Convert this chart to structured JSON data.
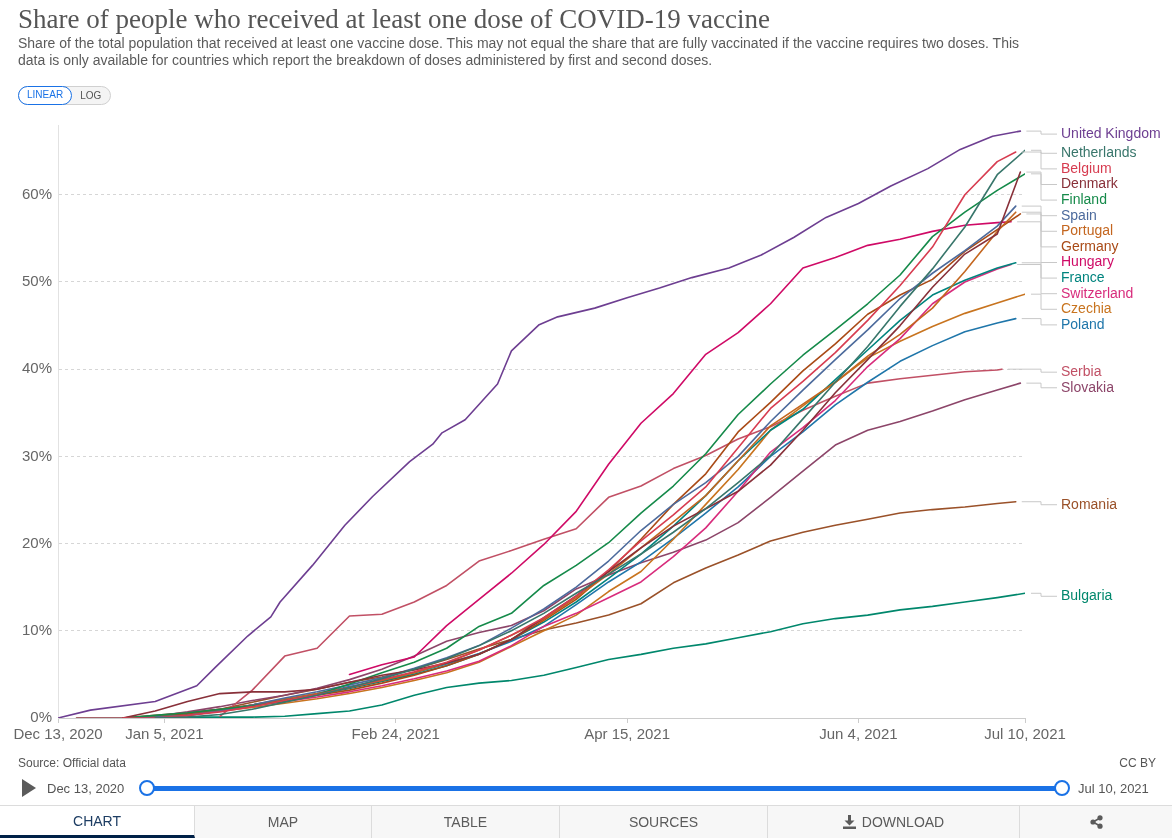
{
  "chart_data": {
    "type": "line",
    "title": "Share of people who received at least one dose of COVID-19 vaccine",
    "subtitle": "Share of the total population that received at least one vaccine dose. This may not equal the share that are fully vaccinated if the vaccine requires two doses. This data is only available for countries which report the breakdown of doses administered by first and second doses.",
    "annotations": [
      "Source: Official data",
      "CC BY",
      "LINEAR",
      "LOG",
      "Dec 13, 2020",
      "Jul 10, 2021",
      "CHART",
      "MAP",
      "TABLE",
      "SOURCES",
      "DOWNLOAD"
    ],
    "xlim": [
      "2020-12-13",
      "2021-07-10"
    ],
    "xticks": [
      {
        "value": "2020-12-13",
        "label": "Dec 13, 2020"
      },
      {
        "value": "2021-01-05",
        "label": "Jan 5, 2021"
      },
      {
        "value": "2021-02-24",
        "label": "Feb 24, 2021"
      },
      {
        "value": "2021-04-15",
        "label": "Apr 15, 2021"
      },
      {
        "value": "2021-06-04",
        "label": "Jun 4, 2021"
      },
      {
        "value": "2021-07-10",
        "label": "Jul 10, 2021"
      }
    ],
    "ylim": [
      0,
      68
    ],
    "yticks": [
      {
        "value": 0,
        "label": "0%"
      },
      {
        "value": 10,
        "label": "10%"
      },
      {
        "value": 20,
        "label": "20%"
      },
      {
        "value": 30,
        "label": "30%"
      },
      {
        "value": 40,
        "label": "40%"
      },
      {
        "value": 50,
        "label": "50%"
      },
      {
        "value": 60,
        "label": "60%"
      }
    ],
    "grid": "y",
    "series": [
      {
        "name": "United Kingdom",
        "color": "#6d3e91",
        "x": [
          "2020-12-13",
          "2020-12-20",
          "2021-01-03",
          "2021-01-10",
          "2021-01-12",
          "2021-01-16",
          "2021-01-23",
          "2021-01-28",
          "2021-01-30",
          "2021-02-06",
          "2021-02-13",
          "2021-02-19",
          "2021-02-27",
          "2021-03-04",
          "2021-03-06",
          "2021-03-11",
          "2021-03-18",
          "2021-03-21",
          "2021-03-27",
          "2021-03-31",
          "2021-04-08",
          "2021-04-15",
          "2021-04-22",
          "2021-04-29",
          "2021-05-07",
          "2021-05-14",
          "2021-05-21",
          "2021-05-28",
          "2021-06-04",
          "2021-06-11",
          "2021-06-19",
          "2021-06-26",
          "2021-07-03",
          "2021-07-09"
        ],
        "values": [
          0.0,
          0.9,
          1.9,
          3.3,
          3.7,
          5.8,
          9.4,
          11.6,
          13.3,
          17.5,
          22.1,
          25.4,
          29.4,
          31.4,
          32.7,
          34.2,
          38.3,
          42.1,
          45.1,
          46.0,
          47.0,
          48.2,
          49.3,
          50.5,
          51.6,
          53.1,
          55.1,
          57.4,
          59.0,
          61.0,
          63.0,
          65.2,
          66.7,
          67.3
        ]
      },
      {
        "name": "Netherlands",
        "color": "#38766b",
        "x": [
          "2021-01-03",
          "2021-01-10",
          "2021-01-17",
          "2021-01-24",
          "2021-01-31",
          "2021-02-07",
          "2021-02-14",
          "2021-02-21",
          "2021-02-28",
          "2021-03-07",
          "2021-03-14",
          "2021-03-21",
          "2021-03-28",
          "2021-04-04",
          "2021-04-11",
          "2021-04-18",
          "2021-04-25",
          "2021-05-02",
          "2021-05-09",
          "2021-05-16",
          "2021-05-23",
          "2021-05-30",
          "2021-06-06",
          "2021-06-13",
          "2021-06-20",
          "2021-06-27",
          "2021-07-04",
          "2021-07-10"
        ],
        "values": [
          0.0,
          0.1,
          0.4,
          1.0,
          1.8,
          2.6,
          3.5,
          4.5,
          5.6,
          6.8,
          8.3,
          10.0,
          12.0,
          14.3,
          16.5,
          18.8,
          21.3,
          24.0,
          27.0,
          30.1,
          34.3,
          38.5,
          42.6,
          47.2,
          51.5,
          56.3,
          62.3,
          65.1
        ]
      },
      {
        "name": "Belgium",
        "color": "#d73c50",
        "x": [
          "2020-12-27",
          "2021-01-03",
          "2021-01-10",
          "2021-01-17",
          "2021-01-24",
          "2021-01-31",
          "2021-02-07",
          "2021-02-14",
          "2021-02-21",
          "2021-02-28",
          "2021-03-07",
          "2021-03-14",
          "2021-03-21",
          "2021-03-28",
          "2021-04-04",
          "2021-04-11",
          "2021-04-18",
          "2021-04-25",
          "2021-05-02",
          "2021-05-09",
          "2021-05-16",
          "2021-05-23",
          "2021-05-30",
          "2021-06-06",
          "2021-06-13",
          "2021-06-20",
          "2021-06-27",
          "2021-07-04",
          "2021-07-08"
        ],
        "values": [
          0.0,
          0.0,
          0.3,
          0.7,
          1.3,
          2.0,
          2.7,
          3.5,
          4.4,
          5.3,
          6.4,
          7.8,
          9.5,
          11.5,
          14.0,
          17.0,
          20.3,
          23.3,
          26.5,
          31.0,
          35.5,
          38.6,
          41.9,
          45.6,
          49.6,
          54.0,
          60.0,
          63.8,
          64.9
        ]
      },
      {
        "name": "Denmark",
        "color": "#883039",
        "x": [
          "2020-12-17",
          "2020-12-27",
          "2021-01-03",
          "2021-01-10",
          "2021-01-17",
          "2021-01-24",
          "2021-01-31",
          "2021-02-07",
          "2021-02-14",
          "2021-02-21",
          "2021-02-28",
          "2021-03-07",
          "2021-03-14",
          "2021-03-21",
          "2021-03-28",
          "2021-04-04",
          "2021-04-11",
          "2021-04-18",
          "2021-04-25",
          "2021-05-02",
          "2021-05-09",
          "2021-05-16",
          "2021-05-23",
          "2021-05-30",
          "2021-06-06",
          "2021-06-13",
          "2021-06-20",
          "2021-06-27",
          "2021-07-04",
          "2021-07-09"
        ],
        "values": [
          0.0,
          0.0,
          0.8,
          1.9,
          2.8,
          3.0,
          3.0,
          3.3,
          4.1,
          4.9,
          5.5,
          6.3,
          7.3,
          9.0,
          11.5,
          14.0,
          16.8,
          19.5,
          22.0,
          24.0,
          26.0,
          29.0,
          33.0,
          37.3,
          41.1,
          45.0,
          49.4,
          53.2,
          55.5,
          62.6
        ]
      },
      {
        "name": "Finland",
        "color": "#158a4a",
        "x": [
          "2020-12-27",
          "2021-01-03",
          "2021-01-10",
          "2021-01-17",
          "2021-01-24",
          "2021-01-31",
          "2021-02-07",
          "2021-02-14",
          "2021-02-21",
          "2021-02-28",
          "2021-03-07",
          "2021-03-14",
          "2021-03-21",
          "2021-03-28",
          "2021-04-04",
          "2021-04-11",
          "2021-04-18",
          "2021-04-25",
          "2021-05-02",
          "2021-05-09",
          "2021-05-16",
          "2021-05-23",
          "2021-05-30",
          "2021-06-06",
          "2021-06-13",
          "2021-06-20",
          "2021-06-27",
          "2021-07-04",
          "2021-07-10"
        ],
        "values": [
          0.0,
          0.3,
          0.6,
          1.0,
          1.4,
          1.9,
          2.7,
          3.9,
          5.2,
          6.4,
          8.0,
          10.5,
          12.0,
          15.2,
          17.5,
          20.1,
          23.5,
          26.6,
          30.3,
          34.8,
          38.3,
          41.6,
          44.5,
          47.5,
          50.8,
          55.2,
          58.0,
          60.5,
          62.4
        ]
      },
      {
        "name": "Spain",
        "color": "#4c6a9c",
        "x": [
          "2020-12-27",
          "2021-01-03",
          "2021-01-10",
          "2021-01-17",
          "2021-01-24",
          "2021-01-31",
          "2021-02-07",
          "2021-02-14",
          "2021-02-21",
          "2021-02-28",
          "2021-03-07",
          "2021-03-14",
          "2021-03-21",
          "2021-03-28",
          "2021-04-04",
          "2021-04-11",
          "2021-04-18",
          "2021-04-25",
          "2021-05-02",
          "2021-05-09",
          "2021-05-16",
          "2021-05-23",
          "2021-05-30",
          "2021-06-06",
          "2021-06-13",
          "2021-06-20",
          "2021-06-27",
          "2021-07-04",
          "2021-07-08"
        ],
        "values": [
          0.0,
          0.1,
          0.3,
          0.8,
          1.5,
          2.3,
          3.0,
          3.8,
          4.6,
          5.7,
          6.9,
          8.3,
          10.3,
          12.5,
          15.0,
          18.0,
          21.5,
          24.5,
          27.0,
          30.0,
          34.0,
          37.6,
          41.1,
          44.5,
          48.1,
          51.0,
          53.6,
          56.4,
          58.7
        ]
      },
      {
        "name": "Portugal",
        "color": "#c4661f",
        "x": [
          "2020-12-27",
          "2021-01-03",
          "2021-01-10",
          "2021-01-17",
          "2021-01-24",
          "2021-01-31",
          "2021-02-07",
          "2021-02-14",
          "2021-02-21",
          "2021-02-28",
          "2021-03-07",
          "2021-03-14",
          "2021-03-21",
          "2021-03-28",
          "2021-04-04",
          "2021-04-11",
          "2021-04-18",
          "2021-04-25",
          "2021-05-02",
          "2021-05-09",
          "2021-05-16",
          "2021-05-23",
          "2021-05-30",
          "2021-06-06",
          "2021-06-13",
          "2021-06-20",
          "2021-06-27",
          "2021-07-04",
          "2021-07-08"
        ],
        "values": [
          0.0,
          0.1,
          0.3,
          0.8,
          1.5,
          2.2,
          2.8,
          3.5,
          4.3,
          5.2,
          6.3,
          7.8,
          9.5,
          11.3,
          13.8,
          16.5,
          19.5,
          22.5,
          25.5,
          29.5,
          33.5,
          36.0,
          38.5,
          41.5,
          44.0,
          47.0,
          51.2,
          55.8,
          58.0
        ]
      },
      {
        "name": "Germany",
        "color": "#a94a16",
        "x": [
          "2020-12-27",
          "2021-01-03",
          "2021-01-10",
          "2021-01-17",
          "2021-01-24",
          "2021-01-31",
          "2021-02-07",
          "2021-02-14",
          "2021-02-21",
          "2021-02-28",
          "2021-03-07",
          "2021-03-14",
          "2021-03-21",
          "2021-03-28",
          "2021-04-04",
          "2021-04-11",
          "2021-04-18",
          "2021-04-25",
          "2021-05-02",
          "2021-05-09",
          "2021-05-16",
          "2021-05-23",
          "2021-05-30",
          "2021-06-06",
          "2021-06-13",
          "2021-06-20",
          "2021-06-27",
          "2021-07-04",
          "2021-07-09"
        ],
        "values": [
          0.0,
          0.2,
          0.5,
          1.0,
          1.5,
          2.0,
          2.6,
          3.2,
          4.0,
          4.9,
          6.0,
          7.3,
          9.0,
          11.2,
          13.6,
          16.8,
          20.5,
          24.5,
          28.0,
          32.8,
          36.2,
          39.8,
          42.9,
          46.3,
          48.5,
          50.3,
          53.5,
          56.0,
          57.8
        ]
      },
      {
        "name": "Hungary",
        "color": "#cf0a66",
        "x": [
          "2021-02-14",
          "2021-02-21",
          "2021-02-28",
          "2021-03-07",
          "2021-03-14",
          "2021-03-21",
          "2021-03-28",
          "2021-04-04",
          "2021-04-11",
          "2021-04-18",
          "2021-04-25",
          "2021-05-02",
          "2021-05-09",
          "2021-05-16",
          "2021-05-23",
          "2021-05-30",
          "2021-06-06",
          "2021-06-13",
          "2021-06-20",
          "2021-06-27",
          "2021-07-04",
          "2021-07-07"
        ],
        "values": [
          5.0,
          6.1,
          7.0,
          10.6,
          13.6,
          16.6,
          19.9,
          23.7,
          29.1,
          33.8,
          37.2,
          41.7,
          44.2,
          47.5,
          51.6,
          52.8,
          54.2,
          54.9,
          55.8,
          56.5,
          56.8,
          56.9
        ]
      },
      {
        "name": "France",
        "color": "#00847e",
        "x": [
          "2020-12-27",
          "2021-01-03",
          "2021-01-10",
          "2021-01-17",
          "2021-01-24",
          "2021-01-31",
          "2021-02-07",
          "2021-02-14",
          "2021-02-21",
          "2021-02-28",
          "2021-03-07",
          "2021-03-14",
          "2021-03-21",
          "2021-03-28",
          "2021-04-04",
          "2021-04-11",
          "2021-04-18",
          "2021-04-25",
          "2021-05-02",
          "2021-05-09",
          "2021-05-16",
          "2021-05-23",
          "2021-05-30",
          "2021-06-06",
          "2021-06-13",
          "2021-06-20",
          "2021-06-27",
          "2021-07-04",
          "2021-07-08"
        ],
        "values": [
          0.0,
          0.1,
          0.4,
          0.9,
          1.5,
          2.1,
          2.7,
          3.4,
          4.2,
          5.0,
          6.0,
          7.3,
          9.0,
          11.0,
          13.3,
          16.0,
          18.8,
          22.0,
          25.5,
          29.5,
          33.0,
          35.4,
          38.8,
          42.2,
          45.6,
          48.5,
          50.2,
          51.6,
          52.2
        ]
      },
      {
        "name": "Switzerland",
        "color": "#d82c7c",
        "x": [
          "2020-12-27",
          "2021-01-03",
          "2021-01-10",
          "2021-01-17",
          "2021-01-24",
          "2021-01-31",
          "2021-02-07",
          "2021-02-14",
          "2021-02-21",
          "2021-02-28",
          "2021-03-07",
          "2021-03-14",
          "2021-03-21",
          "2021-03-28",
          "2021-04-04",
          "2021-04-11",
          "2021-04-18",
          "2021-04-25",
          "2021-05-02",
          "2021-05-09",
          "2021-05-16",
          "2021-05-23",
          "2021-05-30",
          "2021-06-06",
          "2021-06-13",
          "2021-06-20",
          "2021-06-27",
          "2021-07-04",
          "2021-07-07"
        ],
        "values": [
          0.0,
          0.2,
          0.6,
          1.0,
          1.4,
          1.9,
          2.4,
          3.0,
          3.7,
          4.5,
          5.4,
          6.5,
          8.3,
          10.5,
          12.0,
          13.8,
          15.6,
          18.5,
          21.8,
          26.0,
          30.5,
          33.3,
          36.4,
          40.3,
          43.5,
          47.5,
          50.0,
          51.5,
          52.0
        ]
      },
      {
        "name": "Czechia",
        "color": "#c8741f",
        "x": [
          "2020-12-27",
          "2021-01-03",
          "2021-01-10",
          "2021-01-17",
          "2021-01-24",
          "2021-01-31",
          "2021-02-07",
          "2021-02-14",
          "2021-02-21",
          "2021-02-28",
          "2021-03-07",
          "2021-03-14",
          "2021-03-21",
          "2021-03-28",
          "2021-04-04",
          "2021-04-11",
          "2021-04-18",
          "2021-04-25",
          "2021-05-02",
          "2021-05-09",
          "2021-05-16",
          "2021-05-23",
          "2021-05-30",
          "2021-06-06",
          "2021-06-13",
          "2021-06-20",
          "2021-06-27",
          "2021-07-04",
          "2021-07-10"
        ],
        "values": [
          0.0,
          0.2,
          0.5,
          0.8,
          1.2,
          1.7,
          2.2,
          2.8,
          3.5,
          4.3,
          5.2,
          6.4,
          8.2,
          10.0,
          11.8,
          14.5,
          16.8,
          20.5,
          24.5,
          28.5,
          33.0,
          35.8,
          38.5,
          41.3,
          43.2,
          44.9,
          46.4,
          47.6,
          48.6
        ]
      },
      {
        "name": "Poland",
        "color": "#1f76aa",
        "x": [
          "2021-01-17",
          "2021-01-24",
          "2021-01-31",
          "2021-02-07",
          "2021-02-14",
          "2021-02-21",
          "2021-02-28",
          "2021-03-07",
          "2021-03-14",
          "2021-03-21",
          "2021-03-28",
          "2021-04-04",
          "2021-04-11",
          "2021-04-18",
          "2021-04-25",
          "2021-05-02",
          "2021-05-09",
          "2021-05-16",
          "2021-05-23",
          "2021-05-30",
          "2021-06-06",
          "2021-06-13",
          "2021-06-20",
          "2021-06-27",
          "2021-07-04",
          "2021-07-08"
        ],
        "values": [
          0.8,
          1.4,
          2.1,
          2.8,
          3.6,
          4.3,
          5.2,
          6.2,
          7.4,
          8.8,
          10.5,
          13.0,
          15.6,
          17.9,
          20.6,
          23.5,
          26.5,
          30.0,
          32.8,
          35.9,
          38.5,
          40.9,
          42.7,
          44.3,
          45.3,
          45.8
        ]
      },
      {
        "name": "Serbia",
        "color": "#c15065",
        "x": [
          "2021-01-17",
          "2021-01-24",
          "2021-01-31",
          "2021-02-07",
          "2021-02-14",
          "2021-02-21",
          "2021-02-28",
          "2021-03-07",
          "2021-03-14",
          "2021-03-21",
          "2021-03-28",
          "2021-04-04",
          "2021-04-11",
          "2021-04-18",
          "2021-04-25",
          "2021-05-02",
          "2021-05-09",
          "2021-05-16",
          "2021-05-23",
          "2021-05-30",
          "2021-06-06",
          "2021-06-13",
          "2021-06-20",
          "2021-06-27",
          "2021-07-04",
          "2021-07-05"
        ],
        "values": [
          0.2,
          3.2,
          7.1,
          8.0,
          11.7,
          11.9,
          13.3,
          15.2,
          18.0,
          19.2,
          20.5,
          21.7,
          25.3,
          26.6,
          28.6,
          30.1,
          32.0,
          33.4,
          35.3,
          36.9,
          38.4,
          38.9,
          39.3,
          39.7,
          39.9,
          40.0
        ]
      },
      {
        "name": "Slovakia",
        "color": "#8c4569",
        "x": [
          "2020-12-27",
          "2021-01-03",
          "2021-01-10",
          "2021-01-17",
          "2021-01-24",
          "2021-01-31",
          "2021-02-07",
          "2021-02-14",
          "2021-02-21",
          "2021-02-28",
          "2021-03-07",
          "2021-03-14",
          "2021-03-21",
          "2021-03-28",
          "2021-04-04",
          "2021-04-11",
          "2021-04-18",
          "2021-04-25",
          "2021-05-02",
          "2021-05-09",
          "2021-05-16",
          "2021-05-23",
          "2021-05-30",
          "2021-06-06",
          "2021-06-13",
          "2021-06-20",
          "2021-06-27",
          "2021-07-04",
          "2021-07-09"
        ],
        "values": [
          0.0,
          0.2,
          0.7,
          1.3,
          2.0,
          2.6,
          3.4,
          4.4,
          5.6,
          7.1,
          8.8,
          9.8,
          10.6,
          12.3,
          14.8,
          16.4,
          17.8,
          19.0,
          20.4,
          22.4,
          25.3,
          28.3,
          31.3,
          33.0,
          34.0,
          35.2,
          36.5,
          37.6,
          38.4
        ]
      },
      {
        "name": "Romania",
        "color": "#9a5129",
        "x": [
          "2020-12-27",
          "2021-01-03",
          "2021-01-10",
          "2021-01-17",
          "2021-01-24",
          "2021-01-31",
          "2021-02-07",
          "2021-02-14",
          "2021-02-21",
          "2021-02-28",
          "2021-03-07",
          "2021-03-14",
          "2021-03-21",
          "2021-03-28",
          "2021-04-04",
          "2021-04-11",
          "2021-04-18",
          "2021-04-25",
          "2021-05-02",
          "2021-05-09",
          "2021-05-16",
          "2021-05-23",
          "2021-05-30",
          "2021-06-06",
          "2021-06-13",
          "2021-06-20",
          "2021-06-27",
          "2021-07-04",
          "2021-07-08"
        ],
        "values": [
          0.0,
          0.3,
          0.6,
          1.0,
          1.8,
          2.6,
          3.3,
          4.1,
          4.7,
          5.6,
          6.7,
          7.9,
          9.0,
          10.1,
          10.9,
          11.8,
          13.1,
          15.5,
          17.2,
          18.7,
          20.3,
          21.3,
          22.1,
          22.8,
          23.5,
          23.9,
          24.2,
          24.6,
          24.8
        ]
      },
      {
        "name": "Bulgaria",
        "color": "#00876c",
        "x": [
          "2021-01-03",
          "2021-01-10",
          "2021-01-17",
          "2021-01-24",
          "2021-01-31",
          "2021-02-07",
          "2021-02-14",
          "2021-02-21",
          "2021-02-28",
          "2021-03-07",
          "2021-03-14",
          "2021-03-21",
          "2021-03-28",
          "2021-04-04",
          "2021-04-11",
          "2021-04-18",
          "2021-04-25",
          "2021-05-02",
          "2021-05-09",
          "2021-05-16",
          "2021-05-23",
          "2021-05-30",
          "2021-06-06",
          "2021-06-13",
          "2021-06-20",
          "2021-06-27",
          "2021-07-04",
          "2021-07-10"
        ],
        "values": [
          0.0,
          0.1,
          0.1,
          0.1,
          0.2,
          0.5,
          0.8,
          1.5,
          2.6,
          3.5,
          4.0,
          4.3,
          4.9,
          5.8,
          6.7,
          7.3,
          8.0,
          8.5,
          9.2,
          9.9,
          10.8,
          11.4,
          11.8,
          12.4,
          12.8,
          13.3,
          13.8,
          14.3
        ]
      }
    ]
  }
}
